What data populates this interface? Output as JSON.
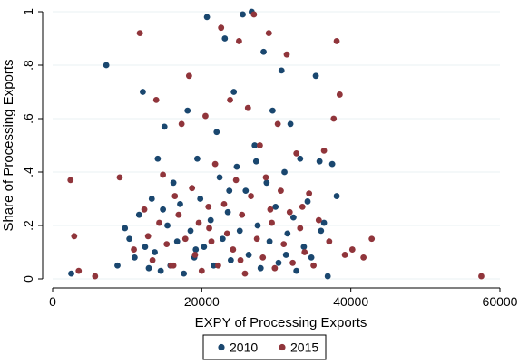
{
  "chart_data": {
    "type": "scatter",
    "xlabel": "EXPY of Processing Exports",
    "ylabel": "Share of Processing Exports",
    "xlim": [
      0,
      60000
    ],
    "ylim": [
      0,
      1
    ],
    "xticks": [
      0,
      20000,
      40000,
      60000
    ],
    "xtick_labels": [
      "0",
      "20000",
      "40000",
      "60000"
    ],
    "yticks": [
      0,
      0.2,
      0.4,
      0.6,
      0.8,
      1
    ],
    "ytick_labels": [
      "0",
      ".2",
      ".4",
      ".6",
      ".8",
      "1"
    ],
    "grid": "horizontal",
    "legend_position": "bottom",
    "series": [
      {
        "name": "2010",
        "color": "#1a476f",
        "points": [
          [
            2500,
            0.02
          ],
          [
            7200,
            0.8
          ],
          [
            8700,
            0.05
          ],
          [
            9700,
            0.19
          ],
          [
            10300,
            0.15
          ],
          [
            11000,
            0.08
          ],
          [
            11600,
            0.24
          ],
          [
            12100,
            0.7
          ],
          [
            12400,
            0.12
          ],
          [
            12900,
            0.04
          ],
          [
            13300,
            0.3
          ],
          [
            13700,
            0.1
          ],
          [
            14100,
            0.45
          ],
          [
            14500,
            0.03
          ],
          [
            15000,
            0.57
          ],
          [
            15400,
            0.2
          ],
          [
            15800,
            0.05
          ],
          [
            16200,
            0.36
          ],
          [
            16700,
            0.14
          ],
          [
            17100,
            0.28
          ],
          [
            17600,
            0.02
          ],
          [
            18100,
            0.63
          ],
          [
            18500,
            0.18
          ],
          [
            19000,
            0.08
          ],
          [
            19400,
            0.45
          ],
          [
            19800,
            0.3
          ],
          [
            20300,
            0.12
          ],
          [
            20700,
            0.98
          ],
          [
            21200,
            0.22
          ],
          [
            21600,
            0.05
          ],
          [
            22000,
            0.55
          ],
          [
            22400,
            0.38
          ],
          [
            22800,
            0.15
          ],
          [
            23100,
            0.9
          ],
          [
            23500,
            0.25
          ],
          [
            23900,
            0.07
          ],
          [
            24300,
            0.7
          ],
          [
            24700,
            0.42
          ],
          [
            25100,
            0.18
          ],
          [
            25500,
            0.99
          ],
          [
            25900,
            0.33
          ],
          [
            26300,
            0.09
          ],
          [
            26700,
            1.0
          ],
          [
            27100,
            0.5
          ],
          [
            27500,
            0.2
          ],
          [
            27900,
            0.04
          ],
          [
            28300,
            0.85
          ],
          [
            28700,
            0.36
          ],
          [
            29100,
            0.14
          ],
          [
            29500,
            0.63
          ],
          [
            29900,
            0.27
          ],
          [
            30300,
            0.06
          ],
          [
            30700,
            0.78
          ],
          [
            31100,
            0.4
          ],
          [
            31500,
            0.17
          ],
          [
            31900,
            0.58
          ],
          [
            32300,
            0.23
          ],
          [
            32700,
            0.03
          ],
          [
            33200,
            0.45
          ],
          [
            33700,
            0.12
          ],
          [
            34200,
            0.29
          ],
          [
            34700,
            0.08
          ],
          [
            35300,
            0.76
          ],
          [
            35800,
            0.44
          ],
          [
            36400,
            0.21
          ],
          [
            36900,
            0.01
          ],
          [
            37500,
            0.43
          ],
          [
            38100,
            0.31
          ],
          [
            14800,
            0.26
          ],
          [
            19200,
            0.11
          ],
          [
            23700,
            0.33
          ],
          [
            27300,
            0.44
          ],
          [
            31300,
            0.09
          ],
          [
            36000,
            0.18
          ]
        ]
      },
      {
        "name": "2015",
        "color": "#90353b",
        "points": [
          [
            2400,
            0.37
          ],
          [
            2900,
            0.16
          ],
          [
            3500,
            0.03
          ],
          [
            5700,
            0.01
          ],
          [
            9000,
            0.38
          ],
          [
            10900,
            0.11
          ],
          [
            11700,
            0.92
          ],
          [
            12300,
            0.26
          ],
          [
            12800,
            0.16
          ],
          [
            13400,
            0.07
          ],
          [
            13900,
            0.67
          ],
          [
            14300,
            0.21
          ],
          [
            14800,
            0.39
          ],
          [
            15300,
            0.13
          ],
          [
            15900,
            0.05
          ],
          [
            16400,
            0.31
          ],
          [
            16900,
            0.24
          ],
          [
            17300,
            0.58
          ],
          [
            17800,
            0.15
          ],
          [
            18300,
            0.76
          ],
          [
            18700,
            0.34
          ],
          [
            19100,
            0.09
          ],
          [
            19600,
            0.21
          ],
          [
            20000,
            0.03
          ],
          [
            20500,
            0.61
          ],
          [
            20900,
            0.27
          ],
          [
            21300,
            0.14
          ],
          [
            21800,
            0.43
          ],
          [
            22200,
            0.05
          ],
          [
            22600,
            0.94
          ],
          [
            23000,
            0.28
          ],
          [
            23400,
            0.17
          ],
          [
            23800,
            0.67
          ],
          [
            24200,
            0.11
          ],
          [
            24600,
            0.37
          ],
          [
            25000,
            0.89
          ],
          [
            25400,
            0.24
          ],
          [
            25800,
            0.02
          ],
          [
            26200,
            0.64
          ],
          [
            26600,
            0.31
          ],
          [
            27000,
            0.99
          ],
          [
            27400,
            0.15
          ],
          [
            27800,
            0.5
          ],
          [
            28200,
            0.08
          ],
          [
            28600,
            0.38
          ],
          [
            29000,
            0.92
          ],
          [
            29400,
            0.21
          ],
          [
            29800,
            0.04
          ],
          [
            30200,
            0.58
          ],
          [
            30600,
            0.33
          ],
          [
            31000,
            0.13
          ],
          [
            31400,
            0.84
          ],
          [
            31800,
            0.25
          ],
          [
            32200,
            0.06
          ],
          [
            32700,
            0.47
          ],
          [
            33200,
            0.19
          ],
          [
            33800,
            0.1
          ],
          [
            34400,
            0.32
          ],
          [
            35000,
            0.05
          ],
          [
            35700,
            0.22
          ],
          [
            36400,
            0.48
          ],
          [
            37100,
            0.14
          ],
          [
            37700,
            0.6
          ],
          [
            38100,
            0.89
          ],
          [
            38500,
            0.69
          ],
          [
            39200,
            0.09
          ],
          [
            40200,
            0.11
          ],
          [
            41700,
            0.08
          ],
          [
            42800,
            0.15
          ],
          [
            57500,
            0.01
          ],
          [
            16200,
            0.05
          ],
          [
            21000,
            0.19
          ],
          [
            25200,
            0.07
          ],
          [
            29200,
            0.26
          ],
          [
            33500,
            0.27
          ]
        ]
      }
    ]
  }
}
